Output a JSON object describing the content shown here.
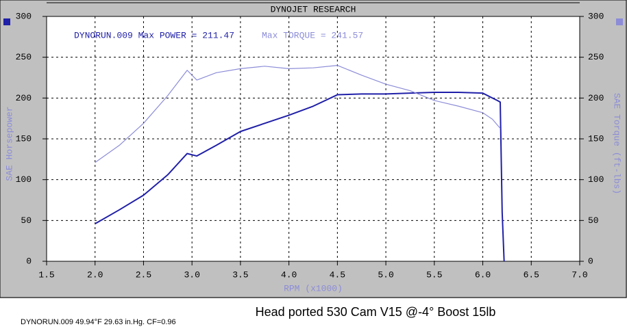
{
  "chart_data": {
    "type": "line",
    "title": "DYNOJET RESEARCH",
    "annotations": [
      "DYNORUN.009 Max POWER = 211.47",
      "Max TORQUE = 241.57"
    ],
    "xlabel": "RPM (x1000)",
    "ylabel": "SAE Horsepower",
    "y2label": "SAE Torque (ft-lbs)",
    "footer": "Head  ported 530   Cam V15  @-4°   Boost 15lb",
    "run_info": "DYNORUN.009 49.94°F 29.63 in.Hg. CF=0.96",
    "x": [
      2.0,
      2.25,
      2.5,
      2.75,
      2.95,
      3.05,
      3.25,
      3.5,
      3.75,
      4.0,
      4.25,
      4.5,
      4.75,
      5.0,
      5.25,
      5.5,
      5.75,
      6.0,
      6.1,
      6.15,
      6.18,
      6.2,
      6.22
    ],
    "series": [
      {
        "name": "Max POWER",
        "color": "#1f1fa8",
        "values": [
          46,
          63,
          81,
          106,
          132,
          129,
          142,
          159,
          169,
          179,
          190,
          204,
          205,
          205,
          206,
          207,
          207,
          206,
          200,
          197,
          195,
          60,
          0
        ]
      },
      {
        "name": "Max TORQUE",
        "color": "#8c8cd8",
        "axis": "y2",
        "values": [
          121,
          142,
          169,
          203,
          234,
          222,
          231,
          236,
          239,
          236,
          237,
          240,
          228,
          217,
          209,
          197,
          190,
          182,
          174,
          167,
          163,
          null,
          null
        ]
      }
    ],
    "xlim": [
      1.5,
      7.0
    ],
    "xticks": [
      1.5,
      {
        "value": 2,
        "label": "2.0"
      },
      2.5,
      {
        "value": 3,
        "label": "3.0"
      },
      3.5,
      {
        "value": 4,
        "label": "4.0"
      },
      4.5,
      {
        "value": 5,
        "label": "5.0"
      },
      5.5,
      {
        "value": 6,
        "label": "6.0"
      },
      6.5,
      {
        "value": 7,
        "label": "7.0"
      }
    ],
    "ylim": [
      0,
      300
    ],
    "yticks": [
      0,
      50,
      100,
      150,
      200,
      250,
      300
    ],
    "y2lim": [
      0,
      300
    ],
    "y2ticks": [
      0,
      50,
      100,
      150,
      200,
      250,
      300
    ],
    "grid": true
  }
}
